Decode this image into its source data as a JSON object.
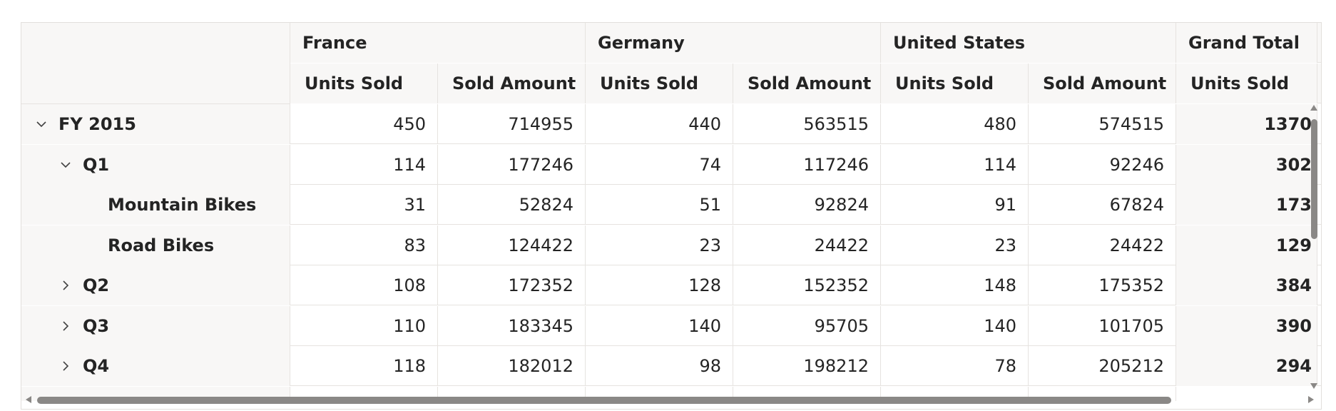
{
  "colors": {
    "header_bg": "#f8f7f6",
    "border": "#e6e3e0",
    "scroll_thumb": "#8a8886",
    "text": "#242424"
  },
  "header": {
    "countries": [
      "France",
      "Germany",
      "United States",
      "Grand Total"
    ],
    "measures": [
      "Units Sold",
      "Sold Amount",
      "Units Sold",
      "Sold Amount",
      "Units Sold",
      "Sold Amount",
      "Units Sold"
    ]
  },
  "rows": [
    {
      "label": "FY 2015",
      "expander": "chevron-down-icon",
      "values": [
        "450",
        "714955",
        "440",
        "563515",
        "480",
        "574515"
      ],
      "total": "1370"
    },
    {
      "label": "Q1",
      "expander": "chevron-down-icon",
      "values": [
        "114",
        "177246",
        "74",
        "117246",
        "114",
        "92246"
      ],
      "total": "302"
    },
    {
      "label": "Mountain Bikes",
      "expander": "",
      "values": [
        "31",
        "52824",
        "51",
        "92824",
        "91",
        "67824"
      ],
      "total": "173"
    },
    {
      "label": "Road Bikes",
      "expander": "",
      "values": [
        "83",
        "124422",
        "23",
        "24422",
        "23",
        "24422"
      ],
      "total": "129"
    },
    {
      "label": "Q2",
      "expander": "chevron-right-icon",
      "values": [
        "108",
        "172352",
        "128",
        "152352",
        "148",
        "175352"
      ],
      "total": "384"
    },
    {
      "label": "Q3",
      "expander": "chevron-right-icon",
      "values": [
        "110",
        "183345",
        "140",
        "95705",
        "140",
        "101705"
      ],
      "total": "390"
    },
    {
      "label": "Q4",
      "expander": "chevron-right-icon",
      "values": [
        "118",
        "182012",
        "98",
        "198212",
        "78",
        "205212"
      ],
      "total": "294"
    }
  ]
}
